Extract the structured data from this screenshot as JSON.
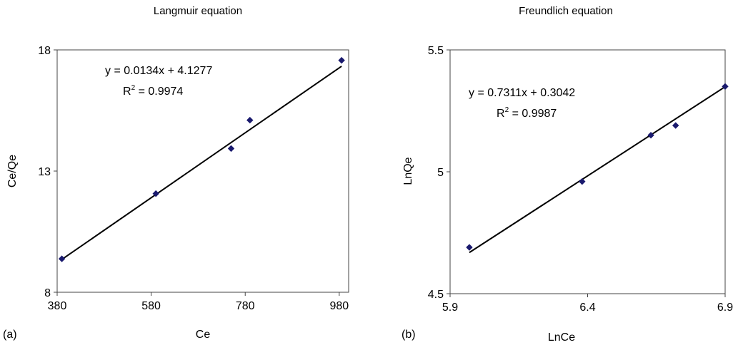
{
  "chart_data": [
    {
      "type": "scatter",
      "panel_label": "(a)",
      "title": "Langmuir equation",
      "xlabel": "Ce",
      "ylabel": "Ce/Qe",
      "xlim": [
        380,
        1000
      ],
      "ylim": [
        8,
        18
      ],
      "xticks": [
        380,
        580,
        780,
        980
      ],
      "yticks": [
        8,
        13,
        18
      ],
      "grid": false,
      "marker_color": "#1a1a6e",
      "line_color": "#000000",
      "points": [
        {
          "x": 390,
          "y": 9.38
        },
        {
          "x": 590,
          "y": 12.07
        },
        {
          "x": 750,
          "y": 13.93
        },
        {
          "x": 790,
          "y": 15.1
        },
        {
          "x": 985,
          "y": 17.57
        }
      ],
      "trendline": {
        "slope": 0.0134,
        "intercept": 4.1277,
        "x_start": 390,
        "x_end": 985
      },
      "equation": "y = 0.0134x + 4.1277",
      "r2_prefix": "R",
      "r2_exp": "2",
      "r2_value": " = 0.9974"
    },
    {
      "type": "scatter",
      "panel_label": "(b)",
      "title": "Freundlich equation",
      "xlabel": "LnCe",
      "ylabel": "LnQe",
      "xlim": [
        5.9,
        6.9
      ],
      "ylim": [
        4.5,
        5.5
      ],
      "xticks": [
        "5.9",
        "6.4",
        "6.9"
      ],
      "yticks": [
        "4.5",
        "5",
        "5.5"
      ],
      "grid": false,
      "marker_color": "#1a1a6e",
      "line_color": "#000000",
      "points": [
        {
          "x": 5.97,
          "y": 4.69
        },
        {
          "x": 6.38,
          "y": 4.96
        },
        {
          "x": 6.63,
          "y": 5.15
        },
        {
          "x": 6.72,
          "y": 5.19
        },
        {
          "x": 6.9,
          "y": 5.35
        }
      ],
      "trendline": {
        "slope": 0.7311,
        "intercept": 0.3042,
        "x_start": 5.97,
        "x_end": 6.9
      },
      "equation": "y = 0.7311x + 0.3042",
      "r2_prefix": "R",
      "r2_exp": "2",
      "r2_value": " = 0.9987"
    }
  ]
}
